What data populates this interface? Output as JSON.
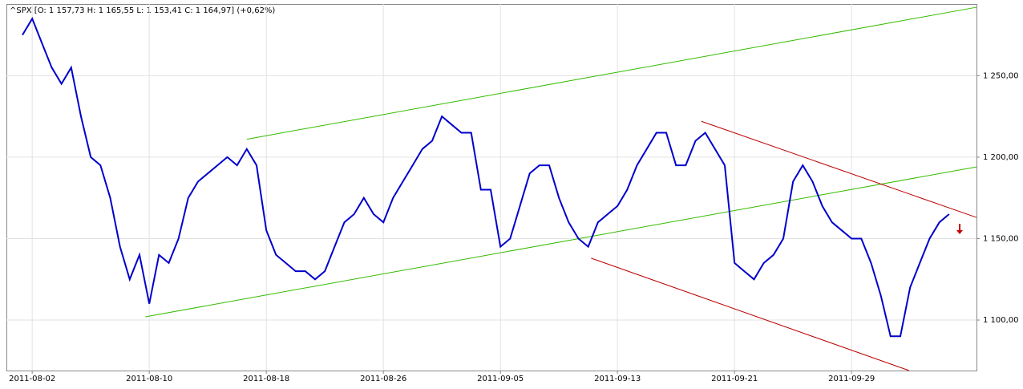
{
  "chart_data": {
    "type": "line",
    "title": "^SPX [O: 1 157,73  H: 1 165,55  L: 1 153,41  C: 1 164,97] (+0,62%)",
    "categories": [
      null,
      "2011-08-02",
      null,
      null,
      null,
      null,
      null,
      null,
      null,
      null,
      null,
      null,
      null,
      "2011-08-10",
      null,
      null,
      null,
      null,
      null,
      null,
      null,
      null,
      null,
      null,
      null,
      "2011-08-18",
      null,
      null,
      null,
      null,
      null,
      null,
      null,
      null,
      null,
      null,
      null,
      "2011-08-26",
      null,
      null,
      null,
      null,
      null,
      null,
      null,
      null,
      null,
      null,
      null,
      "2011-09-05",
      null,
      null,
      null,
      null,
      null,
      null,
      null,
      null,
      null,
      null,
      null,
      "2011-09-13",
      null,
      null,
      null,
      null,
      null,
      null,
      null,
      null,
      null,
      null,
      null,
      "2011-09-21",
      null,
      null,
      null,
      null,
      null,
      null,
      null,
      null,
      null,
      null,
      null,
      "2011-09-29",
      null,
      null,
      null,
      null,
      null,
      null,
      null,
      null,
      null,
      null
    ],
    "series": [
      {
        "name": "^SPX",
        "color": "#0000cc",
        "values": [
          1275,
          1285,
          1270,
          1255,
          1245,
          1255,
          1225,
          1200,
          1195,
          1175,
          1145,
          1125,
          1140,
          1110,
          1140,
          1135,
          1150,
          1175,
          1185,
          1190,
          1195,
          1200,
          1195,
          1205,
          1195,
          1155,
          1140,
          1135,
          1130,
          1130,
          1125,
          1130,
          1145,
          1160,
          1165,
          1175,
          1165,
          1160,
          1175,
          1185,
          1195,
          1205,
          1210,
          1225,
          1220,
          1215,
          1215,
          1180,
          1180,
          1145,
          1150,
          1170,
          1190,
          1195,
          1195,
          1175,
          1160,
          1150,
          1145,
          1160,
          1165,
          1170,
          1180,
          1195,
          1205,
          1215,
          1215,
          1195,
          1195,
          1210,
          1215,
          1205,
          1195,
          1135,
          1130,
          1125,
          1135,
          1140,
          1150,
          1185,
          1195,
          1185,
          1170,
          1160,
          1155,
          1150,
          1150,
          1135,
          1115,
          1090,
          1090,
          1120,
          1135,
          1150,
          1160,
          1165
        ]
      }
    ],
    "trendlines": [
      {
        "color": "#33bb00",
        "start": [
          23,
          1211
        ],
        "end": [
          97.8,
          1292
        ]
      },
      {
        "color": "#33bb00",
        "start": [
          12.6,
          1102
        ],
        "end": [
          97.8,
          1194
        ]
      },
      {
        "color": "#bb0000",
        "start": [
          69.6,
          1222
        ],
        "end": [
          97.8,
          1163
        ]
      },
      {
        "color": "#bb0000",
        "start": [
          58.3,
          1138
        ],
        "end": [
          90.9,
          1069
        ]
      }
    ],
    "ylim": [
      1069,
      1294
    ],
    "yticks": [
      {
        "value": 1100,
        "label": "1 100,00"
      },
      {
        "value": 1150,
        "label": "1 150,00"
      },
      {
        "value": 1200,
        "label": "1 200,00"
      },
      {
        "value": 1250,
        "label": "1 250,00"
      }
    ],
    "grid": true
  }
}
